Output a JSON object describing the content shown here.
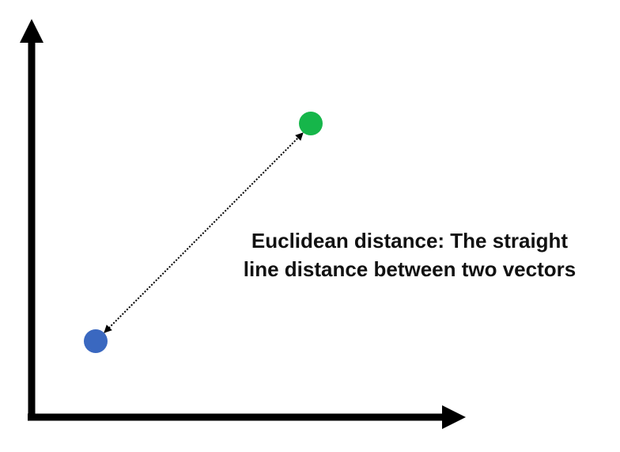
{
  "caption": {
    "line1": "Euclidean distance: The straight",
    "line2": "line distance between two vectors"
  },
  "colors": {
    "axis": "#000000",
    "point_a": "#3a68c0",
    "point_b": "#16b64a",
    "connector": "#000000",
    "caption_text": "#111111"
  },
  "icons": {
    "y_axis_head": "arrow-up-icon",
    "x_axis_head": "arrow-right-icon",
    "connector_ends": "double-headed-arrow"
  }
}
